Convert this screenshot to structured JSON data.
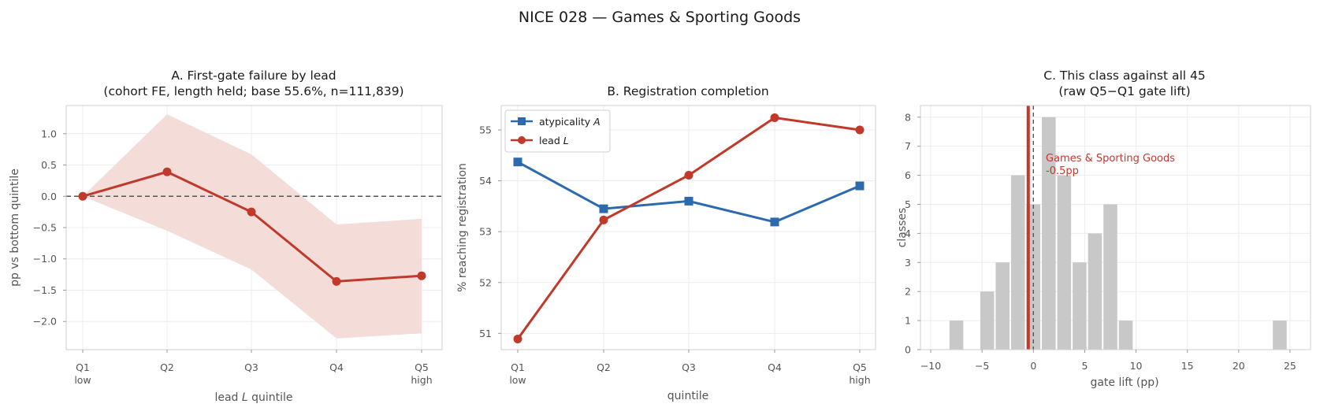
{
  "figure": {
    "title": "NICE 028 — Games & Sporting Goods"
  },
  "colors": {
    "red": "#c0392b",
    "blue": "#2c6aad",
    "band": "#f4dcd9",
    "hist": "#c8c8c8",
    "grid": "#ececec",
    "spine": "#cfcfcf"
  },
  "chart_data": [
    {
      "type": "line",
      "panel": "A",
      "title_line1": "A. First-gate failure by lead",
      "title_line2": "(cohort FE, length held; base 55.6%, n=111,839)",
      "xlabel_prefix": "lead ",
      "xlabel_var": "L",
      "xlabel_suffix": " quintile",
      "ylabel": "pp vs bottom quintile",
      "categories": [
        "Q1",
        "Q2",
        "Q3",
        "Q4",
        "Q5"
      ],
      "category_sublabels": [
        "low",
        "",
        "",
        "",
        "high"
      ],
      "series": [
        {
          "values": [
            0.0,
            0.39,
            -0.25,
            -1.36,
            -1.27
          ],
          "ci_low": [
            0.0,
            -0.55,
            -1.17,
            -2.27,
            -2.19
          ],
          "ci_high": [
            0.0,
            1.31,
            0.67,
            -0.45,
            -0.36
          ]
        }
      ],
      "reference_line": 0,
      "ylim": [
        -2.45,
        1.45
      ],
      "yticks": [
        "1.0",
        "0.5",
        "0.0",
        "−0.5",
        "−1.0",
        "−1.5",
        "−2.0"
      ],
      "ytick_values": [
        1.0,
        0.5,
        0.0,
        -0.5,
        -1.0,
        -1.5,
        -2.0
      ],
      "grid": true
    },
    {
      "type": "line",
      "panel": "B",
      "title": "B. Registration completion",
      "xlabel": "quintile",
      "ylabel": "% reaching registration",
      "categories": [
        "Q1",
        "Q2",
        "Q3",
        "Q4",
        "Q5"
      ],
      "category_sublabels": [
        "low",
        "",
        "",
        "",
        "high"
      ],
      "series": [
        {
          "name": "atypicality ",
          "name_var": "A",
          "marker": "square",
          "values": [
            54.37,
            53.45,
            53.6,
            53.19,
            53.9
          ]
        },
        {
          "name": "lead ",
          "name_var": "L",
          "marker": "circle",
          "values": [
            50.89,
            53.23,
            54.11,
            55.24,
            55.0
          ]
        }
      ],
      "ylim": [
        50.68,
        55.48
      ],
      "yticks": [
        "51",
        "52",
        "53",
        "54",
        "55"
      ],
      "ytick_values": [
        51,
        52,
        53,
        54,
        55
      ],
      "legend": "top-left",
      "grid": true
    },
    {
      "type": "bar",
      "panel": "C",
      "title_line1": "C. This class against all 45",
      "title_line2": "(raw Q5−Q1 gate lift)",
      "xlabel": "gate lift (pp)",
      "ylabel": "classes",
      "bin_centers": [
        -7.5,
        -4.5,
        -3.0,
        -1.5,
        0.0,
        1.5,
        3.0,
        4.5,
        6.0,
        7.5,
        9.0,
        24.0
      ],
      "counts": [
        1,
        2,
        3,
        6,
        5,
        8,
        6,
        3,
        4,
        5,
        1,
        1
      ],
      "bin_width": 1.5,
      "highlight_value": -0.5,
      "highlight_label": "Games & Sporting Goods",
      "highlight_value_label": "-0.5pp",
      "reference_line": 0,
      "xlim": [
        -11,
        27
      ],
      "ylim": [
        0,
        8.4
      ],
      "xticks": [
        "−10",
        "−5",
        "0",
        "5",
        "10",
        "15",
        "20",
        "25"
      ],
      "xtick_values": [
        -10,
        -5,
        0,
        5,
        10,
        15,
        20,
        25
      ],
      "yticks": [
        "0",
        "1",
        "2",
        "3",
        "4",
        "5",
        "6",
        "7",
        "8"
      ],
      "ytick_values": [
        0,
        1,
        2,
        3,
        4,
        5,
        6,
        7,
        8
      ],
      "grid": true
    }
  ]
}
